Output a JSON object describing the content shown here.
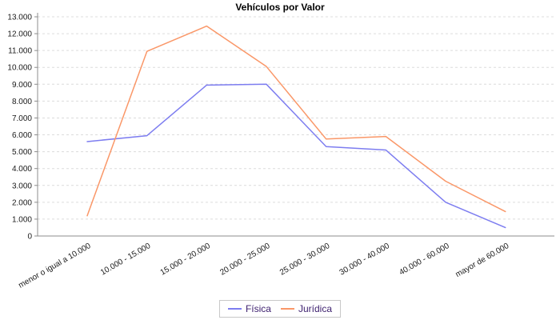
{
  "chart_data": {
    "type": "line",
    "title": "Vehículos por Valor",
    "categories": [
      "menor o igual a 10.000",
      "10.000 - 15.000",
      "15.000 - 20.000",
      "20.000 - 25.000",
      "25.000 - 30.000",
      "30.000 - 40.000",
      "40.000 - 60.000",
      "mayor de 60.000"
    ],
    "series": [
      {
        "name": "Física",
        "color": "#7d7df0",
        "values": [
          5600,
          5950,
          8950,
          9000,
          5300,
          5100,
          2000,
          500
        ]
      },
      {
        "name": "Jurídica",
        "color": "#fa9768",
        "values": [
          1200,
          10950,
          12450,
          10050,
          5750,
          5900,
          3250,
          1450
        ]
      }
    ],
    "y_tick_labels": [
      "0",
      "1.000",
      "2.000",
      "3.000",
      "4.000",
      "5.000",
      "6.000",
      "7.000",
      "8.000",
      "9.000",
      "10.000",
      "11.000",
      "12.000",
      "13.000"
    ],
    "ylim": [
      0,
      13000
    ],
    "y_step": 1000,
    "grid": "horizontal-dashed",
    "legend_position": "bottom",
    "colors": {
      "grid_line": "#dcdcdc",
      "axis_line": "#8c8c8c",
      "tick_label": "#1a1a1a",
      "title_text": "#000000",
      "legend_text": "#3f2270",
      "legend_border": "#c8c8c8",
      "background": "#ffffff"
    }
  }
}
